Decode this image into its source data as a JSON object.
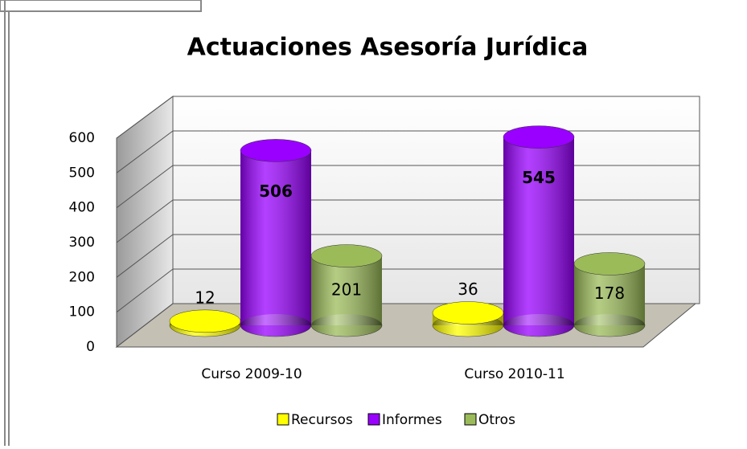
{
  "chart_data": {
    "type": "bar3d",
    "title": "Actuaciones Asesoría Jurídica",
    "categories": [
      "Curso 2009-10",
      "Curso 2010-11"
    ],
    "series": [
      {
        "name": "Recursos",
        "color": "#ffff00",
        "values": [
          12,
          36
        ]
      },
      {
        "name": "Informes",
        "color": "#9900ff",
        "values": [
          506,
          545
        ]
      },
      {
        "name": "Otros",
        "color": "#9bbb59",
        "values": [
          201,
          178
        ]
      }
    ],
    "ylim": [
      0,
      600
    ],
    "yticks": [
      0,
      100,
      200,
      300,
      400,
      500,
      600
    ],
    "grid": true,
    "legend": "bottom"
  }
}
